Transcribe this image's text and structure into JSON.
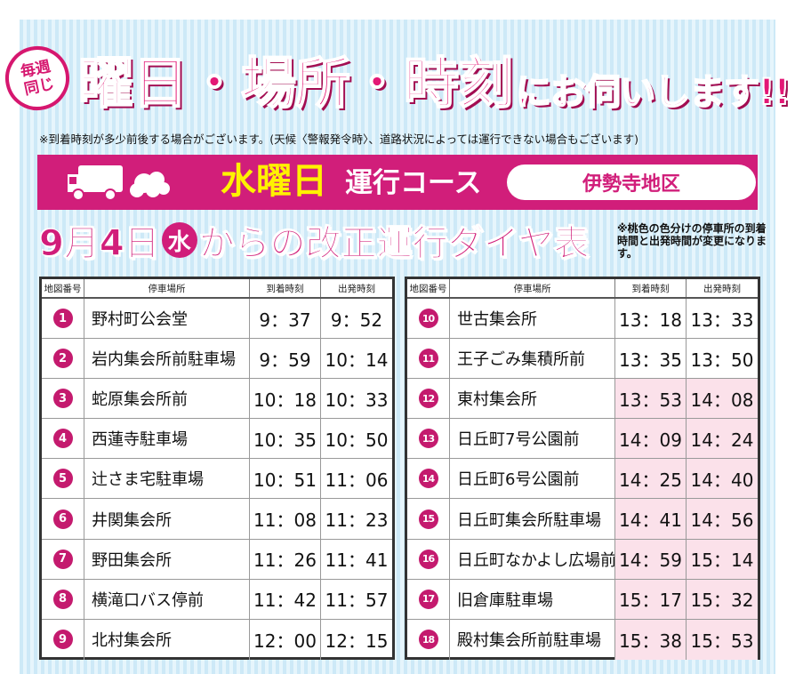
{
  "header": {
    "badge_line1": "毎週",
    "badge_line2": "同じ",
    "headline_main": "曜日・場所・時刻",
    "headline_tail": "にお伺いします!!",
    "note": "※到着時刻が多少前後する場合がございます。(天候〈警報発令時〉、道路状況によっては運行できない場合もございます)"
  },
  "course": {
    "day": "水曜日",
    "label": "運行コース",
    "district": "伊勢寺地区"
  },
  "revision": {
    "title_part1": "9月4日",
    "day_circle": "水",
    "title_part2": "からの改正運行ダイヤ表",
    "note": "※桃色の色分けの停車所の到着時間と出発時間が変更になります。"
  },
  "columns": {
    "no": "地図番号",
    "name": "停車場所",
    "arrive": "到着時刻",
    "depart": "出発時刻"
  },
  "colors": {
    "accent": "#d11e7a",
    "highlight": "#fbe1ea",
    "course_day": "#fff200"
  },
  "stops_left": [
    {
      "no": "1",
      "name": "野村町公会堂",
      "arrive": "9：37",
      "depart": "9：52",
      "changed": false
    },
    {
      "no": "2",
      "name": "岩内集会所前駐車場",
      "arrive": "9：59",
      "depart": "10：14",
      "changed": false
    },
    {
      "no": "3",
      "name": "蛇原集会所前",
      "arrive": "10：18",
      "depart": "10：33",
      "changed": false
    },
    {
      "no": "4",
      "name": "西蓮寺駐車場",
      "arrive": "10：35",
      "depart": "10：50",
      "changed": false
    },
    {
      "no": "5",
      "name": "辻さま宅駐車場",
      "arrive": "10：51",
      "depart": "11：06",
      "changed": false
    },
    {
      "no": "6",
      "name": "井関集会所",
      "arrive": "11：08",
      "depart": "11：23",
      "changed": false
    },
    {
      "no": "7",
      "name": "野田集会所",
      "arrive": "11：26",
      "depart": "11：41",
      "changed": false
    },
    {
      "no": "8",
      "name": "横滝口バス停前",
      "arrive": "11：42",
      "depart": "11：57",
      "changed": false
    },
    {
      "no": "9",
      "name": "北村集会所",
      "arrive": "12：00",
      "depart": "12：15",
      "changed": false
    }
  ],
  "stops_right": [
    {
      "no": "10",
      "name": "世古集会所",
      "arrive": "13：18",
      "depart": "13：33",
      "changed": false
    },
    {
      "no": "11",
      "name": "王子ごみ集積所前",
      "arrive": "13：35",
      "depart": "13：50",
      "changed": false
    },
    {
      "no": "12",
      "name": "東村集会所",
      "arrive": "13：53",
      "depart": "14：08",
      "changed": true
    },
    {
      "no": "13",
      "name": "日丘町7号公園前",
      "arrive": "14：09",
      "depart": "14：24",
      "changed": true
    },
    {
      "no": "14",
      "name": "日丘町6号公園前",
      "arrive": "14：25",
      "depart": "14：40",
      "changed": true
    },
    {
      "no": "15",
      "name": "日丘町集会所駐車場",
      "arrive": "14：41",
      "depart": "14：56",
      "changed": true
    },
    {
      "no": "16",
      "name": "日丘町なかよし広場前",
      "arrive": "14：59",
      "depart": "15：14",
      "changed": true
    },
    {
      "no": "17",
      "name": "旧倉庫駐車場",
      "arrive": "15：17",
      "depart": "15：32",
      "changed": true
    },
    {
      "no": "18",
      "name": "殿村集会所前駐車場",
      "arrive": "15：38",
      "depart": "15：53",
      "changed": true
    }
  ]
}
